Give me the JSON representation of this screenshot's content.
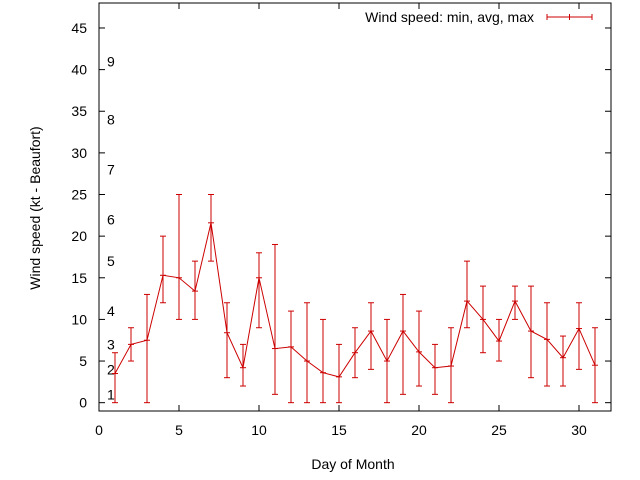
{
  "chart_data": {
    "type": "line",
    "title": "",
    "xlabel": "Day of Month",
    "ylabel": "Wind speed (kt - Beaufort)",
    "xlim": [
      0,
      32
    ],
    "ylim": [
      -1,
      48
    ],
    "x_ticks": [
      0,
      5,
      10,
      15,
      20,
      25,
      30
    ],
    "y_ticks": [
      0,
      5,
      10,
      15,
      20,
      25,
      30,
      35,
      40,
      45
    ],
    "beaufort_labels": [
      {
        "label": "1",
        "value": 1
      },
      {
        "label": "2",
        "value": 4
      },
      {
        "label": "3",
        "value": 7
      },
      {
        "label": "4",
        "value": 11
      },
      {
        "label": "5",
        "value": 17
      },
      {
        "label": "6",
        "value": 22
      },
      {
        "label": "7",
        "value": 28
      },
      {
        "label": "8",
        "value": 34
      },
      {
        "label": "9",
        "value": 41
      }
    ],
    "grid": false,
    "legend_position": "top-right",
    "series": [
      {
        "name": "Wind speed: min, avg, max",
        "color": "#cc0000",
        "x": [
          1,
          2,
          3,
          4,
          5,
          6,
          7,
          8,
          9,
          10,
          11,
          12,
          13,
          14,
          15,
          16,
          17,
          18,
          19,
          20,
          21,
          22,
          23,
          24,
          25,
          26,
          27,
          28,
          29,
          30,
          31
        ],
        "avg": [
          3.5,
          7,
          7.5,
          15.3,
          15,
          13.4,
          21.6,
          8.4,
          4.2,
          15,
          6.5,
          6.7,
          5,
          3.6,
          3.1,
          6,
          8.6,
          5,
          8.6,
          6.1,
          4.2,
          4.4,
          12.2,
          10,
          7.4,
          12.2,
          8.6,
          7.6,
          5.4,
          8.9,
          4.5
        ],
        "min": [
          0,
          5,
          0,
          12,
          10,
          10,
          17,
          3,
          2,
          9,
          1,
          0,
          0,
          0,
          0,
          3,
          4,
          0,
          1,
          2,
          1,
          0,
          9,
          6,
          5,
          10,
          3,
          2,
          2,
          4,
          0
        ],
        "max": [
          6,
          9,
          13,
          20,
          25,
          17,
          25,
          12,
          7,
          18,
          19,
          11,
          12,
          10,
          7,
          9,
          12,
          10,
          13,
          11,
          7,
          9,
          17,
          14,
          10,
          14,
          14,
          12,
          8,
          12,
          9
        ]
      }
    ]
  }
}
